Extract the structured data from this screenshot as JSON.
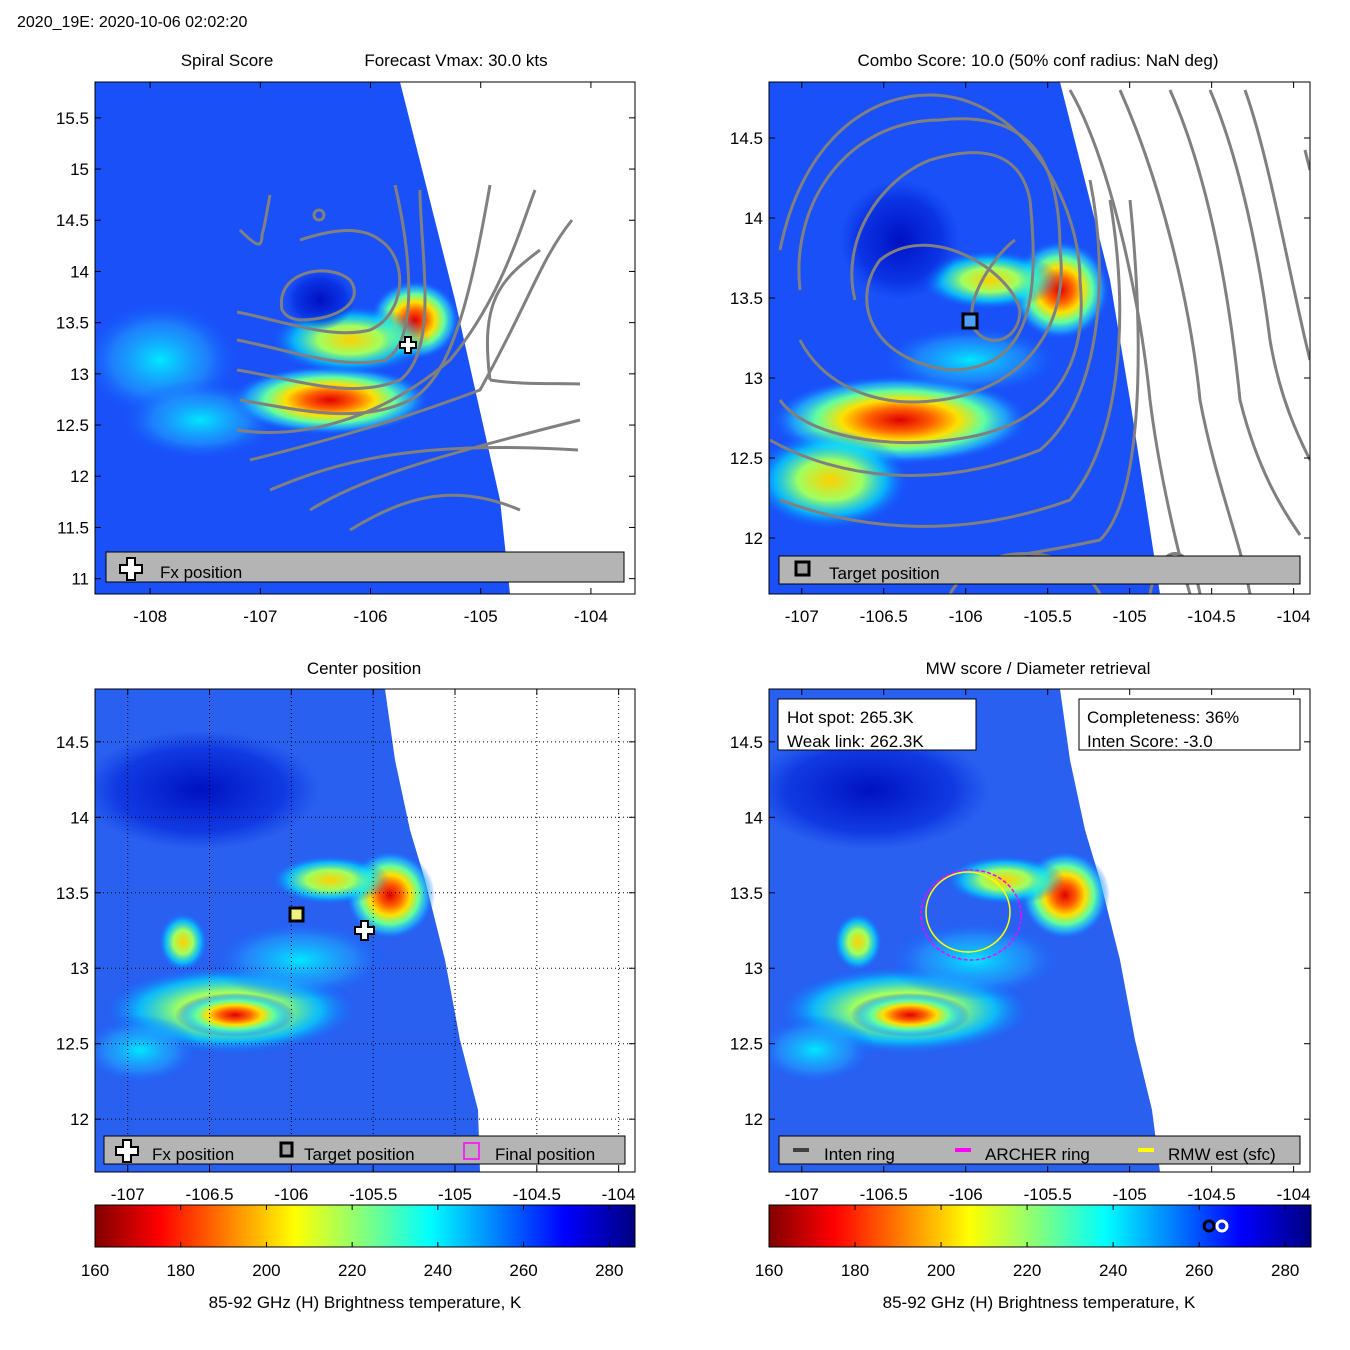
{
  "figure_title": "2020_19E: 2020-10-06 02:02:20",
  "chart_data": [
    {
      "type": "heatmap",
      "id": "spiral",
      "title_left": "Spiral Score",
      "title_right": "Forecast Vmax: 30.0 kts",
      "xticks": [
        "-108",
        "-107",
        "-106",
        "-105",
        "-104"
      ],
      "xtick_values": [
        -108,
        -107,
        -106,
        -105,
        -104
      ],
      "yticks": [
        "15.5",
        "15",
        "14.5",
        "14",
        "13.5",
        "13",
        "12.5",
        "12",
        "11.5",
        "11"
      ],
      "ytick_values": [
        15.5,
        15,
        14.5,
        14,
        13.5,
        13,
        12.5,
        12,
        11.5,
        11
      ],
      "xlim": [
        -108.5,
        -103.6
      ],
      "ylim": [
        10.85,
        15.85
      ],
      "legend": [
        {
          "icon": "plus",
          "label": "Fx position"
        }
      ],
      "markers": [
        {
          "type": "plus",
          "lon": -105.5,
          "lat": 13.25
        }
      ]
    },
    {
      "type": "heatmap",
      "id": "combo",
      "title": "Combo Score: 10.0  (50% conf radius: NaN deg)",
      "xticks": [
        "-107",
        "-106.5",
        "-106",
        "-105.5",
        "-105",
        "-104.5",
        "-104"
      ],
      "xtick_values": [
        -107,
        -106.5,
        -106,
        -105.5,
        -105,
        -104.5,
        -104
      ],
      "yticks": [
        "14.5",
        "14",
        "13.5",
        "13",
        "12.5",
        "12"
      ],
      "ytick_values": [
        14.5,
        14,
        13.5,
        13,
        12.5,
        12
      ],
      "xlim": [
        -107.2,
        -103.9
      ],
      "ylim": [
        11.65,
        14.85
      ],
      "legend": [
        {
          "icon": "square",
          "label": "Target position"
        }
      ],
      "markers": [
        {
          "type": "square",
          "lon": -106.05,
          "lat": 13.35
        }
      ]
    },
    {
      "type": "heatmap",
      "id": "center",
      "title": "Center position",
      "xticks": [
        "-107",
        "-106.5",
        "-106",
        "-105.5",
        "-105",
        "-104.5",
        "-104"
      ],
      "xtick_values": [
        -107,
        -106.5,
        -106,
        -105.5,
        -105,
        -104.5,
        -104
      ],
      "yticks": [
        "14.5",
        "14",
        "13.5",
        "13",
        "12.5",
        "12"
      ],
      "ytick_values": [
        14.5,
        14,
        13.5,
        13,
        12.5,
        12
      ],
      "xlim": [
        -107.2,
        -103.9
      ],
      "ylim": [
        11.65,
        14.85
      ],
      "grid": true,
      "legend": [
        {
          "icon": "plus",
          "label": "Fx position"
        },
        {
          "icon": "square",
          "label": "Target position"
        },
        {
          "icon": "magenta-square",
          "label": "Final position"
        }
      ],
      "markers": [
        {
          "type": "square",
          "lon": -106.05,
          "lat": 13.35
        },
        {
          "type": "plus",
          "lon": -105.55,
          "lat": 13.25
        }
      ]
    },
    {
      "type": "heatmap",
      "id": "mw",
      "title": "MW score / Diameter retrieval",
      "xticks": [
        "-107",
        "-106.5",
        "-106",
        "-105.5",
        "-105",
        "-104.5",
        "-104"
      ],
      "xtick_values": [
        -107,
        -106.5,
        -106,
        -105.5,
        -105,
        -104.5,
        -104
      ],
      "yticks": [
        "14.5",
        "14",
        "13.5",
        "13",
        "12.5",
        "12"
      ],
      "ytick_values": [
        14.5,
        14,
        13.5,
        13,
        12.5,
        12
      ],
      "xlim": [
        -107.2,
        -103.9
      ],
      "ylim": [
        11.65,
        14.85
      ],
      "info_left": [
        "Hot spot: 265.3K",
        "Weak link: 262.3K"
      ],
      "info_right": [
        "Completeness: 36%",
        "Inten Score: -3.0"
      ],
      "legend": [
        {
          "icon": "dark-line",
          "label": "Inten ring"
        },
        {
          "icon": "magenta-line",
          "label": "ARCHER ring"
        },
        {
          "icon": "yellow-line",
          "label": "RMW est (sfc)"
        }
      ]
    }
  ],
  "colorbar": {
    "ticks": [
      "160",
      "180",
      "200",
      "220",
      "240",
      "260",
      "280"
    ],
    "tick_values": [
      160,
      180,
      200,
      220,
      240,
      260,
      280
    ],
    "range": [
      160,
      286
    ],
    "label": "85-92 GHz (H) Brightness temperature, K",
    "markers_right": [
      {
        "type": "black-ring",
        "value": 262.3
      },
      {
        "type": "white-ring",
        "value": 265.3
      }
    ]
  },
  "colors": {
    "contour": "#808080",
    "legend_bg": "#b4b4b4",
    "archer_ring": "#ff00ff",
    "rmw_ring": "#ffff00",
    "inten_ring": "#404040"
  }
}
